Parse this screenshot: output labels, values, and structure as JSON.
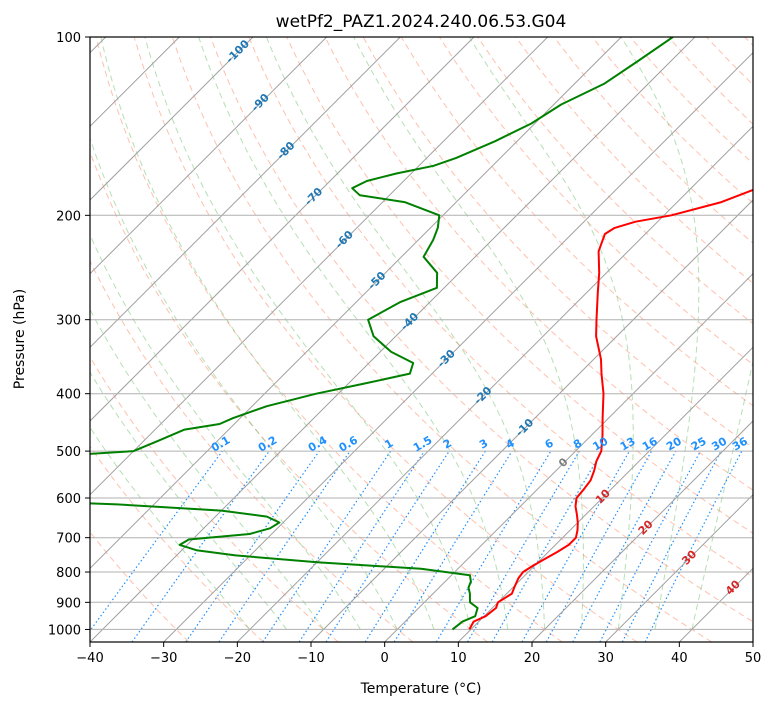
{
  "chart_data": {
    "type": "skew-t",
    "title": "wetPf2_PAZ1.2024.240.06.53.G04",
    "xlabel": "Temperature (°C)",
    "ylabel": "Pressure (hPa)",
    "xlim": [
      -40,
      50
    ],
    "ylim": [
      1050,
      100
    ],
    "yscale": "log",
    "x_ticks": [
      -40,
      -30,
      -20,
      -10,
      0,
      10,
      20,
      30,
      40,
      50
    ],
    "y_ticks": [
      100,
      200,
      300,
      400,
      500,
      600,
      700,
      800,
      900,
      1000
    ],
    "x_tick_labels": [
      "−40",
      "−30",
      "−20",
      "−10",
      "0",
      "10",
      "20",
      "30",
      "40",
      "50"
    ],
    "y_tick_labels": [
      "100",
      "200",
      "300",
      "400",
      "500",
      "600",
      "700",
      "800",
      "900",
      "1000"
    ],
    "grid": true,
    "series": [
      {
        "color": "#ff0000",
        "p": [
          1000,
          970,
          950,
          920,
          900,
          870,
          850,
          820,
          800,
          780,
          760,
          740,
          720,
          700,
          680,
          660,
          640,
          620,
          600,
          580,
          560,
          540,
          520,
          500,
          470,
          440,
          400,
          370,
          350,
          320,
          300,
          270,
          250,
          230,
          215,
          210,
          205,
          200,
          190,
          180,
          170,
          160,
          150,
          140,
          130,
          120,
          110,
          100
        ],
        "t": [
          9.8,
          9.3,
          10.2,
          10.5,
          10.0,
          10.7,
          10.2,
          9.5,
          9.3,
          9.8,
          10.5,
          11.2,
          11.8,
          11.8,
          11.0,
          10.0,
          8.8,
          7.5,
          6.5,
          6.3,
          6.0,
          5.2,
          4.2,
          3.5,
          1.5,
          -0.8,
          -4.0,
          -7.0,
          -9.0,
          -12.8,
          -15.0,
          -18.5,
          -21.0,
          -24.0,
          -25.5,
          -25.0,
          -23.0,
          -19.0,
          -14.0,
          -11.0,
          -9.5,
          -8.5,
          -7.8,
          -7.5,
          -6.8,
          -7.0,
          -7.0,
          -8.0
        ]
      },
      {
        "color": "#008000",
        "p": [
          1000,
          970,
          950,
          920,
          900,
          870,
          850,
          830,
          810,
          790,
          770,
          750,
          735,
          720,
          705,
          690,
          675,
          660,
          645,
          630,
          615,
          600,
          590,
          575,
          560,
          545,
          530,
          515,
          500,
          480,
          460,
          450,
          440,
          420,
          400,
          385,
          370,
          355,
          340,
          320,
          300,
          280,
          265,
          250,
          235,
          220,
          210,
          200,
          190,
          185,
          180,
          175,
          170,
          165,
          160,
          150,
          140,
          130,
          120,
          110,
          100
        ],
        "td": [
          7.5,
          7.8,
          8.8,
          8.0,
          6.2,
          5.0,
          4.0,
          3.5,
          2.5,
          -5.0,
          -20.0,
          -32.0,
          -38.0,
          -41.0,
          -40.5,
          -33.0,
          -31.0,
          -30.5,
          -33.0,
          -40.0,
          -55.0,
          -80.0,
          -90.0,
          -95.0,
          -100.0,
          -105.0,
          -95.0,
          -75.0,
          -60.0,
          -58.0,
          -56.0,
          -52.0,
          -51.0,
          -48.0,
          -43.0,
          -38.0,
          -33.0,
          -34.0,
          -38.5,
          -43.0,
          -46.0,
          -44.0,
          -41.0,
          -43.0,
          -47.0,
          -48.0,
          -49.0,
          -50.5,
          -57.0,
          -64.0,
          -66.0,
          -65.0,
          -62.0,
          -58.0,
          -56.0,
          -53.0,
          -50.5,
          -49.0,
          -46.0,
          -44.5,
          -43.0
        ]
      }
    ],
    "isotherm_labels": [
      {
        "t": -100,
        "text": "-100"
      },
      {
        "t": -90,
        "text": "-90"
      },
      {
        "t": -80,
        "text": "-80"
      },
      {
        "t": -70,
        "text": "-70"
      },
      {
        "t": -60,
        "text": "-60"
      },
      {
        "t": -50,
        "text": "-50"
      },
      {
        "t": -40,
        "text": "-40"
      },
      {
        "t": -30,
        "text": "-30"
      },
      {
        "t": -20,
        "text": "-20"
      },
      {
        "t": -10,
        "text": "-10"
      },
      {
        "t": 0,
        "text": "0"
      },
      {
        "t": 10,
        "text": "10"
      },
      {
        "t": 20,
        "text": "20"
      },
      {
        "t": 30,
        "text": "30"
      },
      {
        "t": 40,
        "text": "40"
      }
    ],
    "mixing_ratio_labels": [
      "0.1",
      "0.2",
      "0.4",
      "0.6",
      "1",
      "1.5",
      "2",
      "3",
      "4",
      "6",
      "8",
      "10",
      "13",
      "16",
      "20",
      "25",
      "30",
      "36"
    ],
    "colors": {
      "temperature": "#ff0000",
      "dewpoint": "#008000",
      "isotherm_cold_label": "#1f77b4",
      "isotherm_zero_label": "#7f7f7f",
      "isotherm_warm_label": "#d62728",
      "mixing_ratio": "#1e90ff",
      "dry_adiabat": "#ff8c69",
      "moist_adiabat": "#5cb85c",
      "isotherm": "#a0a0a0",
      "grid": "#b0b0b0"
    }
  }
}
